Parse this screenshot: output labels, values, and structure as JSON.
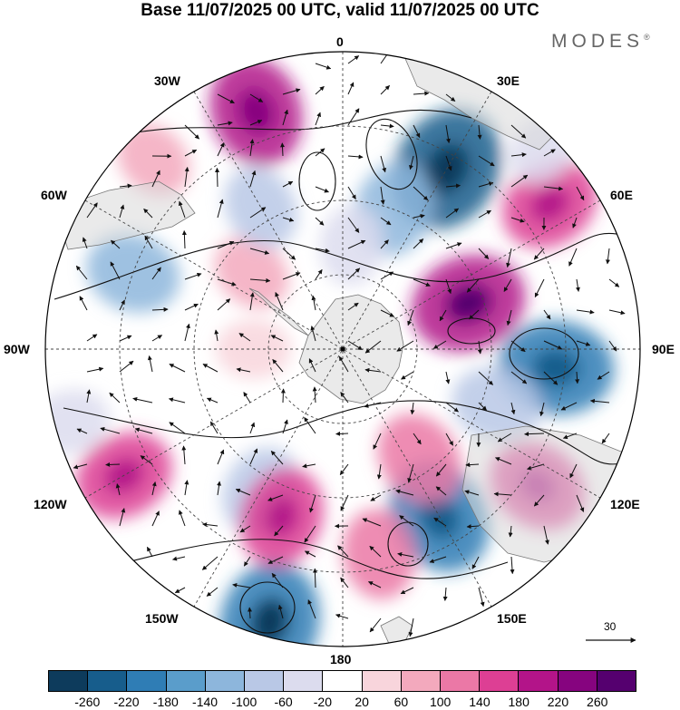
{
  "title": "Base 11/07/2025 00 UTC, valid 11/07/2025 00 UTC",
  "brand": {
    "name": "MODES",
    "mark": "®"
  },
  "map": {
    "projection": "south-polar-stereographic",
    "longitude_labels": {
      "top": "0",
      "top_right": "30E",
      "right_upper": "60E",
      "right": "90E",
      "right_lower": "120E",
      "bottom_right": "150E",
      "bottom": "180",
      "bottom_left": "150W",
      "left_lower": "120W",
      "left": "90W",
      "left_upper": "60W",
      "top_left": "30W"
    },
    "reference_vector_value": "30"
  },
  "colorbar": {
    "colors": [
      "#0d3b5c",
      "#175d8c",
      "#2f7db5",
      "#5a9dcb",
      "#8db6dc",
      "#b9c8e6",
      "#dcdcee",
      "#ffffff",
      "#f8d5dc",
      "#f3a9bd",
      "#eb78a6",
      "#dd3f94",
      "#b31489",
      "#86047f",
      "#55006f"
    ],
    "tick_labels": [
      "-260",
      "-220",
      "-180",
      "-140",
      "-100",
      "-60",
      "-20",
      "20",
      "60",
      "100",
      "140",
      "180",
      "220",
      "260"
    ]
  },
  "anomaly_cells": [
    {
      "lon": 30,
      "r": 0.7,
      "value": -240
    },
    {
      "lon": 95,
      "r": 0.72,
      "value": -200
    },
    {
      "lon": 150,
      "r": 0.65,
      "value": -200
    },
    {
      "lon": 195,
      "r": 0.95,
      "value": -220
    },
    {
      "lon": 20,
      "r": 0.5,
      "value": -120
    },
    {
      "lon": 110,
      "r": 0.55,
      "value": -100
    },
    {
      "lon": 210,
      "r": 0.55,
      "value": -100
    },
    {
      "lon": 290,
      "r": 0.75,
      "value": -120
    },
    {
      "lon": 255,
      "r": 0.95,
      "value": -60
    },
    {
      "lon": 340,
      "r": 0.85,
      "value": 180
    },
    {
      "lon": 55,
      "r": 0.85,
      "value": 140
    },
    {
      "lon": 70,
      "r": 0.45,
      "value": 200
    },
    {
      "lon": 125,
      "r": 0.8,
      "value": 140
    },
    {
      "lon": 145,
      "r": 0.45,
      "value": 120
    },
    {
      "lon": 200,
      "r": 0.6,
      "value": 140
    },
    {
      "lon": 240,
      "r": 0.85,
      "value": 140
    },
    {
      "lon": 170,
      "r": 0.7,
      "value": 100
    },
    {
      "lon": 310,
      "r": 0.4,
      "value": 60
    },
    {
      "lon": 315,
      "r": 0.9,
      "value": 60
    },
    {
      "lon": 45,
      "r": 0.95,
      "value": -40
    },
    {
      "lon": 270,
      "r": 0.3,
      "value": 40
    },
    {
      "lon": 5,
      "r": 0.35,
      "value": -60
    },
    {
      "lon": 330,
      "r": 0.55,
      "value": -80
    }
  ]
}
